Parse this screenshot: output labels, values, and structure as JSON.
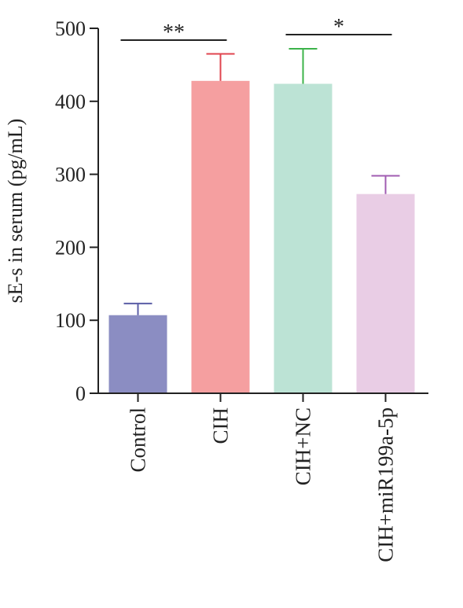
{
  "chart_data": {
    "type": "bar",
    "ylabel": "sE-s in serum (pg/mL)",
    "xlabel": "",
    "ylim": [
      0,
      500
    ],
    "yticks": [
      0,
      100,
      200,
      300,
      400,
      500
    ],
    "categories": [
      "Control",
      "CIH",
      "CIH+NC",
      "CIH+miR199a-5p"
    ],
    "values": [
      107,
      428,
      424,
      273
    ],
    "errors": [
      16,
      37,
      48,
      25
    ],
    "colors": [
      "#8b8dc2",
      "#f59fa0",
      "#bce3d5",
      "#e9cde5"
    ],
    "error_colors": [
      "#5b5ea6",
      "#e0444f",
      "#3cb34a",
      "#a05cb2"
    ],
    "significance": [
      {
        "from": 0,
        "to": 1,
        "label": "**"
      },
      {
        "from": 2,
        "to": 3,
        "label": "*"
      }
    ]
  }
}
